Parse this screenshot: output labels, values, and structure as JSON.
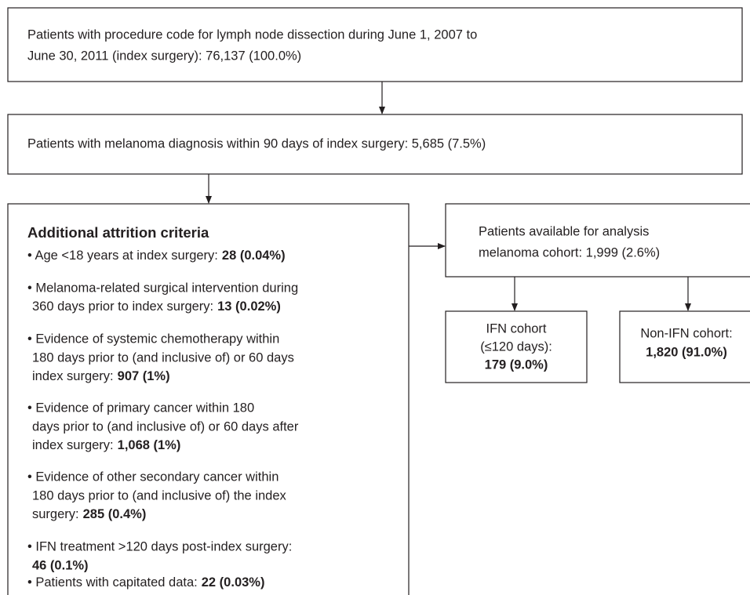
{
  "box_index_surgery": {
    "lines": [
      "Patients with procedure code for lymph node dissection during June 1, 2007 to",
      "June 30, 2011 (index surgery): 76,137 (100.0%)"
    ]
  },
  "box_melanoma": {
    "text": "Patients with melanoma diagnosis within 90 days of index surgery: 5,685 (7.5%)"
  },
  "box_attrition": {
    "title": "Additional attrition criteria",
    "bullets": [
      {
        "lines": [
          "• Age <18 years at index surgery:"
        ],
        "count": "28 (0.04%)"
      },
      {
        "lines": [
          "• Melanoma-related surgical intervention during",
          "360 days prior to index surgery:"
        ],
        "count": "13 (0.02%)"
      },
      {
        "lines": [
          "• Evidence of systemic chemotherapy within",
          "180 days prior to (and inclusive of) or 60 days",
          "index surgery:"
        ],
        "count": "907 (1%)"
      },
      {
        "lines": [
          "• Evidence of primary cancer within 180",
          "days prior to (and inclusive of) or 60 days after",
          "index surgery:"
        ],
        "count": "1,068 (1%)"
      },
      {
        "lines": [
          "• Evidence of other secondary cancer within",
          "180 days prior to (and inclusive of) the index",
          "surgery:"
        ],
        "count": "285 (0.4%)"
      },
      {
        "lines": [
          "• IFN treatment >120 days post-index surgery:"
        ],
        "count": "46 (0.1%)"
      },
      {
        "lines": [
          "• Patients with capitated data:"
        ],
        "count": "22 (0.03%)"
      }
    ]
  },
  "box_available": {
    "lines": [
      "Patients available for analysis",
      "melanoma cohort: 1,999 (2.6%)"
    ]
  },
  "box_ifn": {
    "lines": [
      "IFN cohort",
      "(≤120 days):"
    ],
    "count": "179 (9.0%)"
  },
  "box_non_ifn": {
    "lines": [
      "Non-IFN cohort:"
    ],
    "count": "1,820 (91.0%)"
  }
}
